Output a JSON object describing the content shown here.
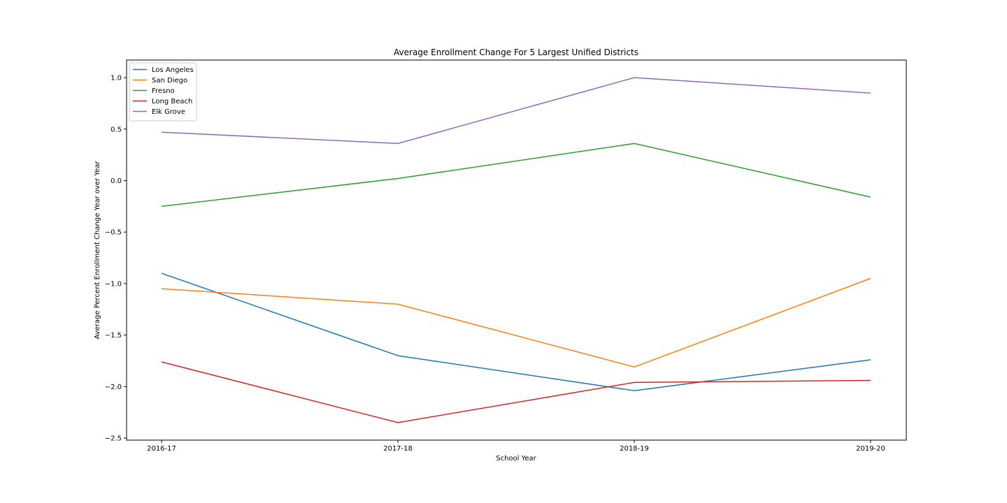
{
  "chart_data": {
    "type": "line",
    "title": "Average Enrollment Change For 5 Largest Unified Districts",
    "xlabel": "School Year",
    "ylabel": "Average Percent Enrollment Change Year over Year",
    "categories": [
      "2016-17",
      "2017-18",
      "2018-19",
      "2019-20"
    ],
    "ylim": [
      -2.52,
      1.17
    ],
    "yticks": [
      -2.5,
      -2.0,
      -1.5,
      -1.0,
      -0.5,
      0.0,
      0.5,
      1.0
    ],
    "ytick_labels": [
      "−2.5",
      "−2.0",
      "−1.5",
      "−1.0",
      "−0.5",
      "0.0",
      "0.5",
      "1.0"
    ],
    "grid": false,
    "legend_position": "top-left",
    "series": [
      {
        "name": "Los Angeles",
        "color": "#1f77b4",
        "values": [
          -0.9,
          -1.7,
          -2.04,
          -1.74
        ]
      },
      {
        "name": "San Diego",
        "color": "#ff7f0e",
        "values": [
          -1.05,
          -1.2,
          -1.81,
          -0.95
        ]
      },
      {
        "name": "Fresno",
        "color": "#2ca02c",
        "values": [
          -0.25,
          0.02,
          0.36,
          -0.16
        ]
      },
      {
        "name": "Long Beach",
        "color": "#d62728",
        "values": [
          -1.76,
          -2.35,
          -1.96,
          -1.94
        ]
      },
      {
        "name": "Elk Grove",
        "color": "#9467bd",
        "values": [
          0.47,
          0.36,
          1.0,
          0.85
        ]
      }
    ]
  }
}
